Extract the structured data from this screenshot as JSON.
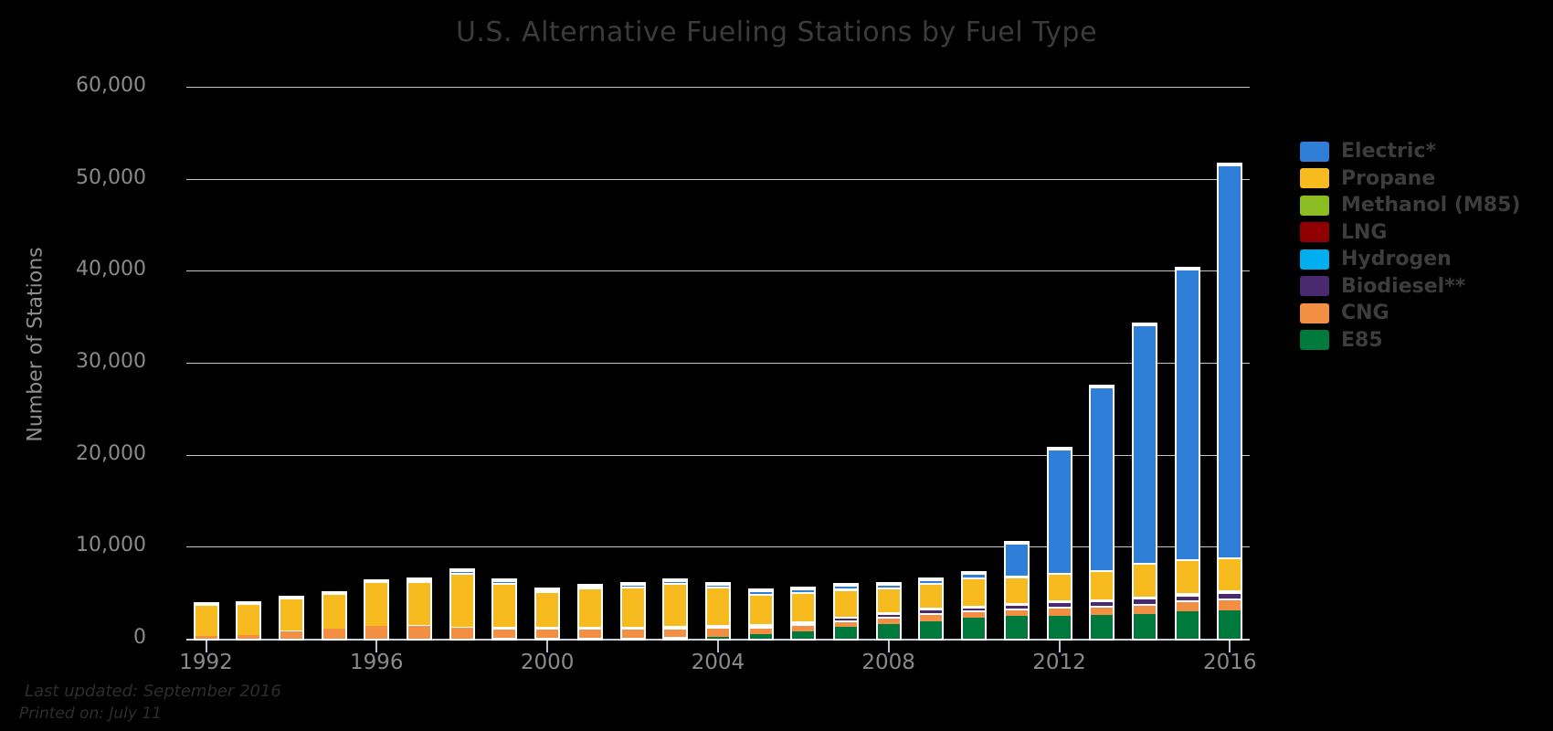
{
  "chart_data": {
    "type": "bar",
    "stacked": true,
    "title": "U.S. Alternative Fueling Stations by Fuel Type",
    "ylabel": "Number of Stations",
    "xlabel": "",
    "ylim": [
      0,
      60000
    ],
    "ytick_interval": 10000,
    "ytick_labels": [
      "0",
      "10,000",
      "20,000",
      "30,000",
      "40,000",
      "50,000",
      "60,000"
    ],
    "grid": true,
    "background": "#000000",
    "legend_position": "right",
    "categories": [
      1992,
      1993,
      1994,
      1995,
      1996,
      1997,
      1998,
      1999,
      2000,
      2001,
      2002,
      2003,
      2004,
      2005,
      2006,
      2007,
      2008,
      2009,
      2010,
      2011,
      2012,
      2013,
      2014,
      2015,
      2016
    ],
    "xtick_labels": [
      "1992",
      "1996",
      "2000",
      "2004",
      "2008",
      "2012",
      "2016"
    ],
    "series": [
      {
        "name": "Electric*",
        "color": "#2f7ed8",
        "values": [
          0,
          0,
          0,
          0,
          0,
          200,
          300,
          300,
          200,
          200,
          300,
          300,
          300,
          400,
          400,
          400,
          450,
          400,
          500,
          3600,
          13600,
          19950,
          25900,
          31600,
          42700
        ]
      },
      {
        "name": "Propane",
        "color": "#f7bb20",
        "values": [
          3450,
          3430,
          3650,
          3800,
          4850,
          4800,
          5900,
          4850,
          3900,
          4250,
          4350,
          4650,
          4150,
          3300,
          3200,
          3000,
          2650,
          2700,
          3100,
          2900,
          2900,
          3150,
          3650,
          3700,
          3600
        ]
      },
      {
        "name": "Methanol (M85)",
        "color": "#8bbc21",
        "values": [
          50,
          50,
          40,
          40,
          40,
          30,
          20,
          0,
          0,
          0,
          0,
          0,
          0,
          0,
          0,
          0,
          0,
          0,
          0,
          0,
          0,
          0,
          0,
          0,
          0
        ]
      },
      {
        "name": "LNG",
        "color": "#910000",
        "values": [
          10,
          15,
          20,
          30,
          40,
          45,
          45,
          45,
          45,
          45,
          40,
          40,
          40,
          50,
          50,
          40,
          40,
          40,
          45,
          50,
          55,
          60,
          70,
          75,
          85
        ]
      },
      {
        "name": "Hydrogen",
        "color": "#00aeef",
        "values": [
          0,
          0,
          0,
          0,
          0,
          0,
          0,
          0,
          0,
          0,
          0,
          5,
          10,
          15,
          20,
          25,
          30,
          40,
          50,
          55,
          55,
          55,
          55,
          50,
          55
        ]
      },
      {
        "name": "Biodiesel**",
        "color": "#492970",
        "values": [
          0,
          0,
          0,
          0,
          0,
          0,
          0,
          0,
          0,
          50,
          100,
          150,
          200,
          270,
          280,
          350,
          450,
          550,
          400,
          550,
          650,
          650,
          700,
          650,
          700
        ]
      },
      {
        "name": "CNG",
        "color": "#f28f43",
        "values": [
          250,
          370,
          800,
          1070,
          1350,
          1400,
          1200,
          1150,
          1100,
          1100,
          1050,
          1050,
          1050,
          800,
          750,
          750,
          750,
          850,
          800,
          800,
          950,
          1000,
          1100,
          1200,
          1300
        ]
      },
      {
        "name": "E85",
        "color": "#007a3c",
        "values": [
          0,
          0,
          0,
          0,
          0,
          0,
          0,
          50,
          100,
          100,
          100,
          150,
          200,
          450,
          800,
          1250,
          1600,
          1900,
          2250,
          2450,
          2500,
          2550,
          2650,
          2950,
          3100
        ]
      }
    ]
  },
  "footer": {
    "line1": "Last updated: September 2016",
    "line2": "Printed on: July 11"
  }
}
